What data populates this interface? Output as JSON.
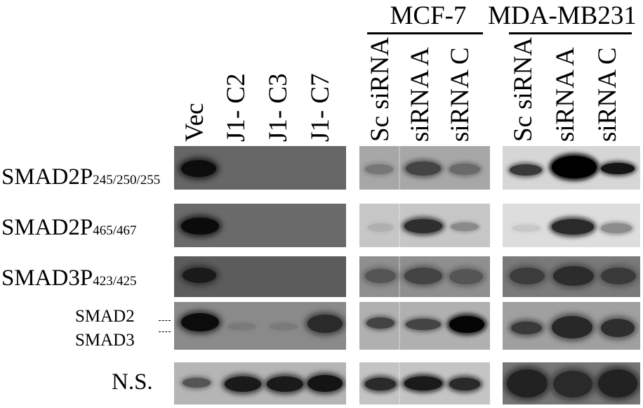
{
  "lanes": {
    "vec": "Vec",
    "j1c2": "J1- C2",
    "j1c3": "J1- C3",
    "j1c7": "J1- C7",
    "mcf_sc": "Sc siRNA",
    "mcf_a": "siRNA A",
    "mcf_c": "siRNA C",
    "mda_sc": "Sc siRNA",
    "mda_a": "siRNA A",
    "mda_c": "siRNA C"
  },
  "groups": {
    "mcf7": "MCF-7",
    "mda": "MDA-MB231"
  },
  "rows": {
    "r1": {
      "main": "SMAD2P",
      "sub": "245/250/255"
    },
    "r2": {
      "main": "SMAD2P",
      "sub": "465/467"
    },
    "r3": {
      "main": "SMAD3P",
      "sub": "423/425"
    },
    "r4a": "SMAD2",
    "r4b": "SMAD3",
    "r5": "N.S."
  },
  "colors": {
    "panel_dark": "#5a5a5a",
    "panel_mid": "#8e8e8e",
    "panel_light": "#bcbcbc",
    "band": "#111111"
  }
}
